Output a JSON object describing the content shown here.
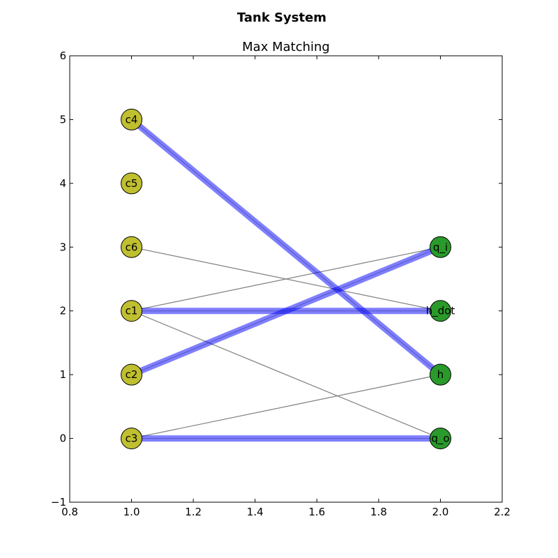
{
  "chart_data": {
    "type": "scatter",
    "title": "Tank System",
    "subtitle": "Max Matching",
    "xlabel": "",
    "ylabel": "",
    "xlim": [
      0.8,
      2.2
    ],
    "ylim": [
      -1,
      6
    ],
    "xticks": [
      "0.8",
      "1.0",
      "1.2",
      "1.4",
      "1.6",
      "1.8",
      "2.0",
      "2.2"
    ],
    "yticks": [
      "−1",
      "0",
      "1",
      "2",
      "3",
      "4",
      "5",
      "6"
    ],
    "xtick_values": [
      0.8,
      1.0,
      1.2,
      1.4,
      1.6,
      1.8,
      2.0,
      2.2
    ],
    "ytick_values": [
      -1,
      0,
      1,
      2,
      3,
      4,
      5,
      6
    ],
    "grid": false,
    "nodes": [
      {
        "label": "c4",
        "x": 1.0,
        "y": 5,
        "color": "#bfbf30"
      },
      {
        "label": "c5",
        "x": 1.0,
        "y": 4,
        "color": "#bfbf30"
      },
      {
        "label": "c6",
        "x": 1.0,
        "y": 3,
        "color": "#bfbf30"
      },
      {
        "label": "c1",
        "x": 1.0,
        "y": 2,
        "color": "#bfbf30"
      },
      {
        "label": "c2",
        "x": 1.0,
        "y": 1,
        "color": "#bfbf30"
      },
      {
        "label": "c3",
        "x": 1.0,
        "y": 0,
        "color": "#bfbf30"
      },
      {
        "label": "q_i",
        "x": 2.0,
        "y": 3,
        "color": "#2a9a2a"
      },
      {
        "label": "h_dot",
        "x": 2.0,
        "y": 2,
        "color": "#2a9a2a"
      },
      {
        "label": "h",
        "x": 2.0,
        "y": 1,
        "color": "#2a9a2a"
      },
      {
        "label": "q_o",
        "x": 2.0,
        "y": 0,
        "color": "#2a9a2a"
      }
    ],
    "edges": [
      {
        "from": "c6",
        "to": "h_dot"
      },
      {
        "from": "c1",
        "to": "q_i"
      },
      {
        "from": "c1",
        "to": "q_o"
      },
      {
        "from": "c3",
        "to": "h"
      }
    ],
    "matching": [
      {
        "from": "c4",
        "to": "h"
      },
      {
        "from": "c1",
        "to": "h_dot"
      },
      {
        "from": "c2",
        "to": "q_i"
      },
      {
        "from": "c3",
        "to": "q_o"
      }
    ],
    "colors": {
      "constraint_node": "#bfbf30",
      "variable_node": "#2a9a2a",
      "edge": "#7f7f7f",
      "matching": "#0000ff"
    }
  }
}
